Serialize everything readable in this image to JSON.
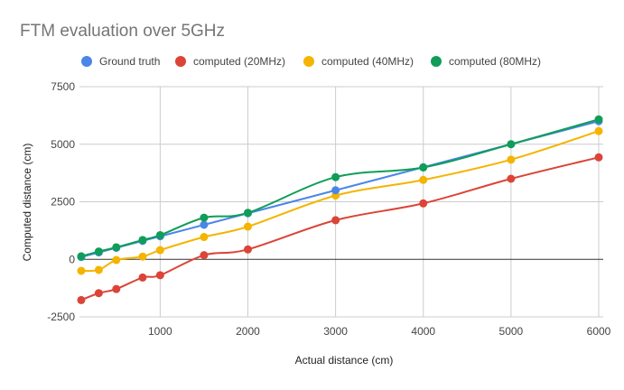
{
  "chart_data": {
    "type": "line",
    "title": "FTM evaluation over 5GHz",
    "xlabel": "Actual distance (cm)",
    "ylabel": "Computed distance (cm)",
    "xlim": [
      80,
      6000
    ],
    "ylim": [
      -2500,
      7500
    ],
    "xticks": [
      1000,
      2000,
      3000,
      4000,
      5000,
      6000
    ],
    "yticks": [
      -2500,
      0,
      2500,
      5000,
      7500
    ],
    "grid": true,
    "legend_position": "top",
    "x": [
      100,
      300,
      500,
      800,
      1000,
      1500,
      2000,
      3000,
      4000,
      5000,
      6000
    ],
    "series": [
      {
        "name": "Ground truth",
        "color": "#4a86e8",
        "values": [
          100,
          300,
          500,
          800,
          1000,
          1500,
          2000,
          3000,
          4000,
          5000,
          6000
        ]
      },
      {
        "name": "computed (20MHz)",
        "color": "#db4437",
        "values": [
          -1770,
          -1470,
          -1290,
          -790,
          -690,
          180,
          430,
          1700,
          2430,
          3500,
          4430
        ]
      },
      {
        "name": "computed (40MHz)",
        "color": "#f4b400",
        "values": [
          -500,
          -460,
          -30,
          120,
          400,
          970,
          1420,
          2770,
          3450,
          4330,
          5570
        ]
      },
      {
        "name": "computed (80MHz)",
        "color": "#0f9d58",
        "values": [
          130,
          340,
          520,
          840,
          1050,
          1810,
          2020,
          3570,
          3990,
          5000,
          6080
        ]
      }
    ]
  }
}
